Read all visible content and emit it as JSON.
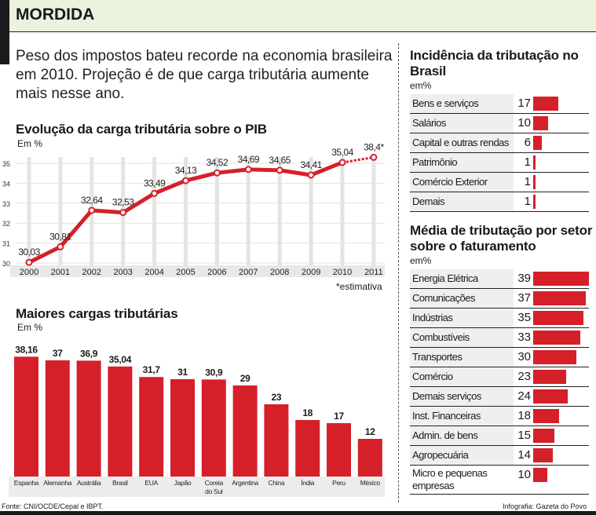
{
  "header": {
    "title": "MORDIDA"
  },
  "lead": "Peso dos impostos bateu recorde na economia brasileira em 2010. Projeção é de que carga tributária aumente mais nesse ano.",
  "colors": {
    "accent": "#d5202a",
    "header_bg": "#ebf2dd",
    "band": "#e8e8e8"
  },
  "chart_data": [
    {
      "type": "line",
      "title": "Evolução da carga tributária sobre o PIB",
      "unit": "Em %",
      "x": [
        "2000",
        "2001",
        "2002",
        "2003",
        "2004",
        "2005",
        "2006",
        "2007",
        "2008",
        "2009",
        "2010",
        "2011"
      ],
      "values": [
        30.03,
        30.81,
        32.64,
        32.53,
        33.49,
        34.13,
        34.52,
        34.69,
        34.65,
        34.41,
        35.04,
        38.4
      ],
      "labels": [
        "30,03",
        "30,81",
        "32,64",
        "32,53",
        "33,49",
        "34,13",
        "34,52",
        "34,69",
        "34,65",
        "34,41",
        "35,04",
        "38,4*"
      ],
      "yticks": [
        "30",
        "31",
        "32",
        "33",
        "34",
        "35"
      ],
      "ylim": [
        30,
        35
      ],
      "grid": true,
      "estimated_from": "2011",
      "note": "*estimativa"
    },
    {
      "type": "bar",
      "title": "Maiores cargas tributárias",
      "unit": "Em %",
      "categories": [
        "Espanha",
        "Alemanha",
        "Austrália",
        "Brasil",
        "EUA",
        "Japão",
        "Coreia do Sul",
        "Argentina",
        "China",
        "Índia",
        "Peru",
        "México"
      ],
      "values": [
        38.16,
        37,
        36.9,
        35.04,
        31.7,
        31,
        30.9,
        29,
        23,
        18,
        17,
        12
      ],
      "labels": [
        "38,16",
        "37",
        "36,9",
        "35,04",
        "31,7",
        "31",
        "30,9",
        "29",
        "23",
        "18",
        "17",
        "12"
      ]
    },
    {
      "type": "bar",
      "orientation": "horizontal",
      "title": "Incidência da tributação no Brasil",
      "unit": "em%",
      "categories": [
        "Bens e serviços",
        "Salários",
        "Capital e outras rendas",
        "Patrimônio",
        "Comércio Exterior",
        "Demais"
      ],
      "values": [
        17,
        10,
        6,
        1,
        1,
        1
      ]
    },
    {
      "type": "bar",
      "orientation": "horizontal",
      "title": "Média de tributação por setor sobre o faturamento",
      "unit": "em%",
      "categories": [
        "Energia Elétrica",
        "Comunicações",
        "Indústrias",
        "Combustíveis",
        "Transportes",
        "Comércio",
        "Demais serviços",
        "Inst. Financeiras",
        "Admin. de bens",
        "Agropecuária",
        "Micro e pequenas empresas"
      ],
      "values": [
        39,
        37,
        35,
        33,
        30,
        23,
        24,
        18,
        15,
        14,
        10
      ]
    }
  ],
  "footer": {
    "source": "Fonte: CNI/OCDE/Cepal e IBPT.",
    "credit": "Infografia: Gazeta do Povo"
  }
}
